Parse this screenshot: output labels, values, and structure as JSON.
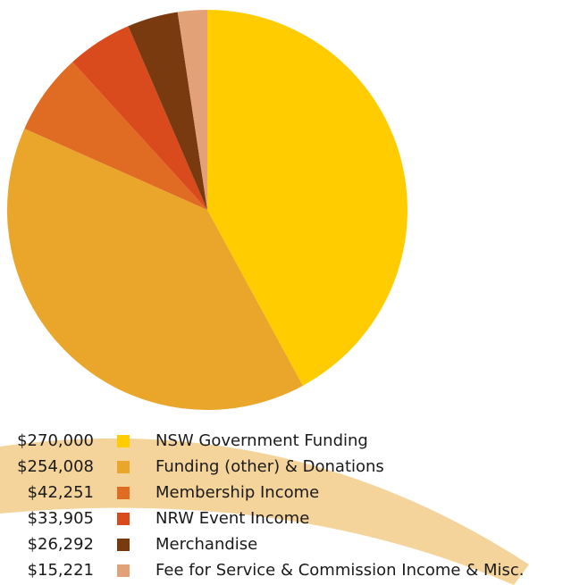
{
  "chart_data": {
    "type": "pie",
    "categories": [
      "NSW Government Funding",
      "Funding (other) & Donations",
      "Membership Income",
      "NRW Event Income",
      "Merchandise",
      "Fee for Service & Commission Income & Misc."
    ],
    "values": [
      270000,
      254008,
      42251,
      33905,
      26292,
      15221
    ],
    "value_labels": [
      "$270,000",
      "$254,008",
      "$42,251",
      "$33,905",
      "$26,292",
      "$15,221"
    ],
    "colors": [
      "#ffcc00",
      "#e9a62b",
      "#e06c23",
      "#d94a1c",
      "#7a3a10",
      "#e2a176"
    ]
  }
}
